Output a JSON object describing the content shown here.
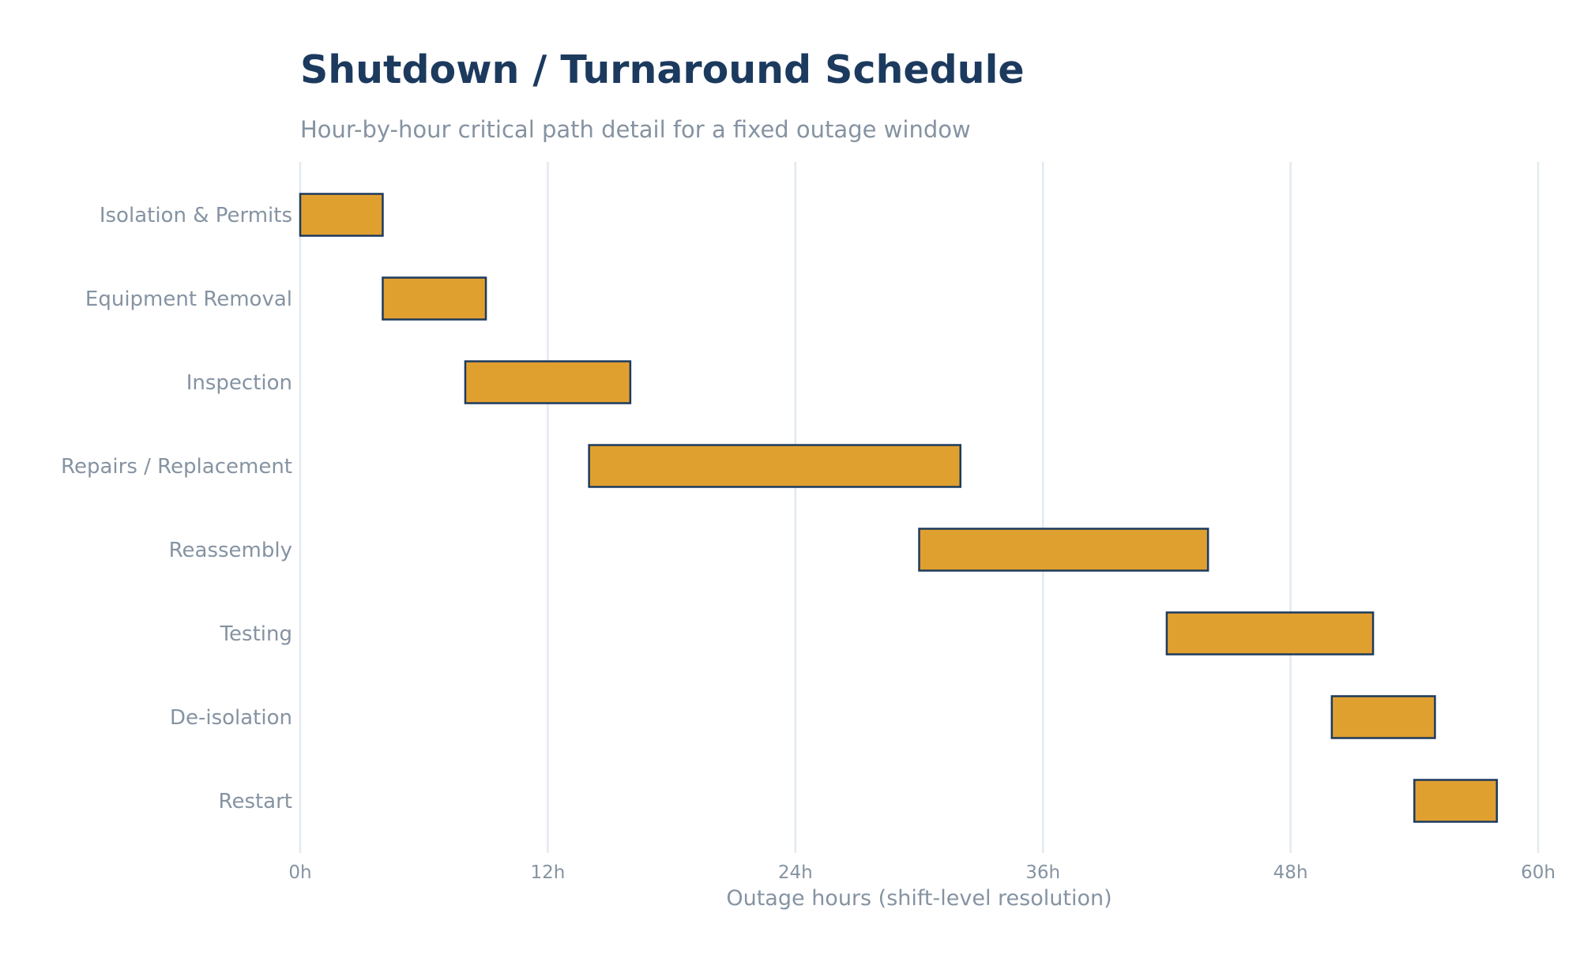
{
  "chart_data": {
    "type": "bar",
    "orientation": "horizontal-gantt",
    "title": "Shutdown / Turnaround Schedule",
    "subtitle": "Hour-by-hour critical path detail for a fixed outage window",
    "xlabel": "Outage hours (shift-level resolution)",
    "ylabel": "",
    "xlim": [
      0,
      60
    ],
    "xticks": [
      {
        "value": 0,
        "label": "0h"
      },
      {
        "value": 12,
        "label": "12h"
      },
      {
        "value": 24,
        "label": "24h"
      },
      {
        "value": 36,
        "label": "36h"
      },
      {
        "value": 48,
        "label": "48h"
      },
      {
        "value": 60,
        "label": "60h"
      }
    ],
    "grid": true,
    "legend": "none",
    "tasks": [
      {
        "name": "Isolation & Permits",
        "start": 0,
        "end": 4
      },
      {
        "name": "Equipment Removal",
        "start": 4,
        "end": 9
      },
      {
        "name": "Inspection",
        "start": 8,
        "end": 16
      },
      {
        "name": "Repairs / Replacement",
        "start": 14,
        "end": 32
      },
      {
        "name": "Reassembly",
        "start": 30,
        "end": 44
      },
      {
        "name": "Testing",
        "start": 42,
        "end": 52
      },
      {
        "name": "De-isolation",
        "start": 50,
        "end": 55
      },
      {
        "name": "Restart",
        "start": 54,
        "end": 58
      }
    ],
    "colors": {
      "bar_fill": "#e0a030",
      "bar_stroke": "#1c3a5e",
      "grid": "#e3e9f0",
      "title": "#1c3a5e",
      "muted_text": "#8593a2"
    }
  }
}
